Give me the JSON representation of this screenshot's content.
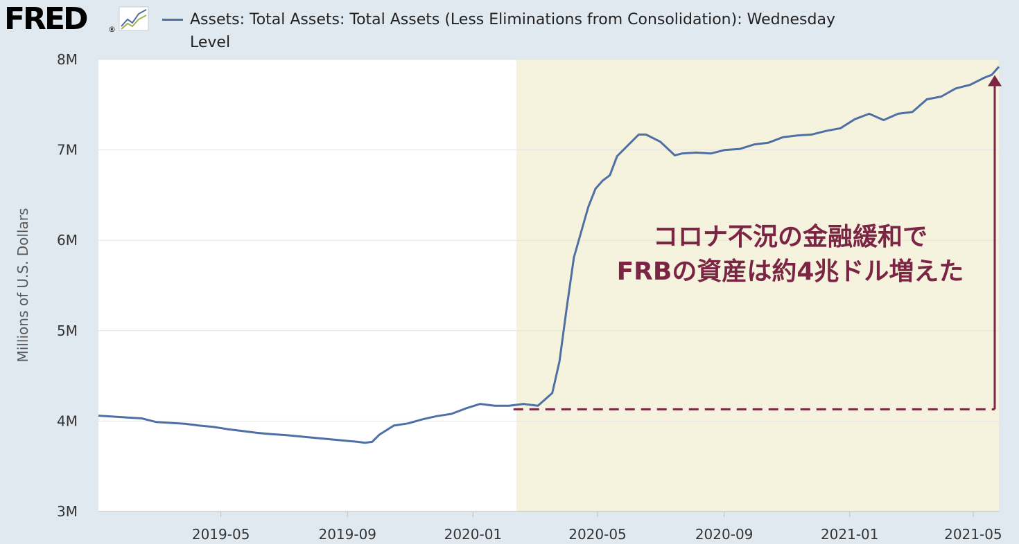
{
  "brand": {
    "logo_text": "FRED",
    "registered_mark": "®",
    "chart_icon": "line-chart-icon"
  },
  "legend": {
    "series_name": "Assets: Total Assets: Total Assets (Less Eliminations from Consolidation): Wednesday Level"
  },
  "annotation": {
    "line1": "コロナ不況の金融緩和で",
    "line2": "FRBの資産は約4兆ドル増えた",
    "color": "#7b2443"
  },
  "colors": {
    "series": "#4e6fa4",
    "highlight": "#f5f3dd",
    "plot_bg": "#ffffff",
    "page_bg": "#e1e9f0",
    "annotation": "#7b2443"
  },
  "chart_data": {
    "type": "line",
    "title": "",
    "xlabel": "",
    "ylabel": "Millions of U.S. Dollars",
    "ylim": [
      3000000,
      8000000
    ],
    "xlim": [
      "2019-01-02",
      "2021-05-26"
    ],
    "y_ticks": [
      {
        "value": 3000000,
        "label": "3M"
      },
      {
        "value": 4000000,
        "label": "4M"
      },
      {
        "value": 5000000,
        "label": "5M"
      },
      {
        "value": 6000000,
        "label": "6M"
      },
      {
        "value": 7000000,
        "label": "7M"
      },
      {
        "value": 8000000,
        "label": "8M"
      }
    ],
    "x_ticks": [
      {
        "value": "2019-05-01",
        "label": "2019-05"
      },
      {
        "value": "2019-09-01",
        "label": "2019-09"
      },
      {
        "value": "2020-01-01",
        "label": "2020-01"
      },
      {
        "value": "2020-05-01",
        "label": "2020-05"
      },
      {
        "value": "2020-09-01",
        "label": "2020-09"
      },
      {
        "value": "2021-01-01",
        "label": "2021-01"
      },
      {
        "value": "2021-05-01",
        "label": "2021-05"
      }
    ],
    "grid": true,
    "shaded_region": {
      "start": "2020-02-12",
      "end": "2021-05-26"
    },
    "reference_level": 4130000,
    "series": [
      {
        "x": [
          "2019-01-02",
          "2019-01-16",
          "2019-01-30",
          "2019-02-13",
          "2019-02-27",
          "2019-03-13",
          "2019-03-27",
          "2019-04-10",
          "2019-04-24",
          "2019-05-08",
          "2019-05-22",
          "2019-06-05",
          "2019-06-19",
          "2019-07-03",
          "2019-07-17",
          "2019-07-31",
          "2019-08-14",
          "2019-08-28",
          "2019-09-11",
          "2019-09-18",
          "2019-09-25",
          "2019-10-02",
          "2019-10-16",
          "2019-10-30",
          "2019-11-13",
          "2019-11-27",
          "2019-12-11",
          "2019-12-25",
          "2020-01-08",
          "2020-01-22",
          "2020-02-05",
          "2020-02-19",
          "2020-03-04",
          "2020-03-11",
          "2020-03-18",
          "2020-03-25",
          "2020-04-01",
          "2020-04-08",
          "2020-04-15",
          "2020-04-22",
          "2020-04-29",
          "2020-05-06",
          "2020-05-13",
          "2020-05-20",
          "2020-06-03",
          "2020-06-10",
          "2020-06-17",
          "2020-07-01",
          "2020-07-15",
          "2020-07-22",
          "2020-08-05",
          "2020-08-19",
          "2020-09-02",
          "2020-09-16",
          "2020-09-30",
          "2020-10-14",
          "2020-10-28",
          "2020-11-11",
          "2020-11-25",
          "2020-12-09",
          "2020-12-23",
          "2021-01-06",
          "2021-01-20",
          "2021-02-03",
          "2021-02-17",
          "2021-03-03",
          "2021-03-17",
          "2021-03-31",
          "2021-04-14",
          "2021-04-28",
          "2021-05-12",
          "2021-05-19",
          "2021-05-26"
        ],
        "y": [
          4060000,
          4050000,
          4040000,
          4030000,
          3990000,
          3980000,
          3970000,
          3950000,
          3935000,
          3910000,
          3890000,
          3870000,
          3855000,
          3845000,
          3830000,
          3815000,
          3800000,
          3785000,
          3770000,
          3760000,
          3770000,
          3850000,
          3950000,
          3975000,
          4020000,
          4055000,
          4080000,
          4140000,
          4190000,
          4170000,
          4170000,
          4190000,
          4170000,
          4240000,
          4310000,
          4660000,
          5250000,
          5810000,
          6090000,
          6370000,
          6570000,
          6660000,
          6720000,
          6930000,
          7090000,
          7170000,
          7170000,
          7090000,
          6940000,
          6960000,
          6970000,
          6960000,
          7000000,
          7010000,
          7060000,
          7080000,
          7140000,
          7160000,
          7170000,
          7210000,
          7240000,
          7340000,
          7400000,
          7330000,
          7400000,
          7420000,
          7560000,
          7590000,
          7680000,
          7720000,
          7800000,
          7830000,
          7920000
        ]
      }
    ]
  }
}
